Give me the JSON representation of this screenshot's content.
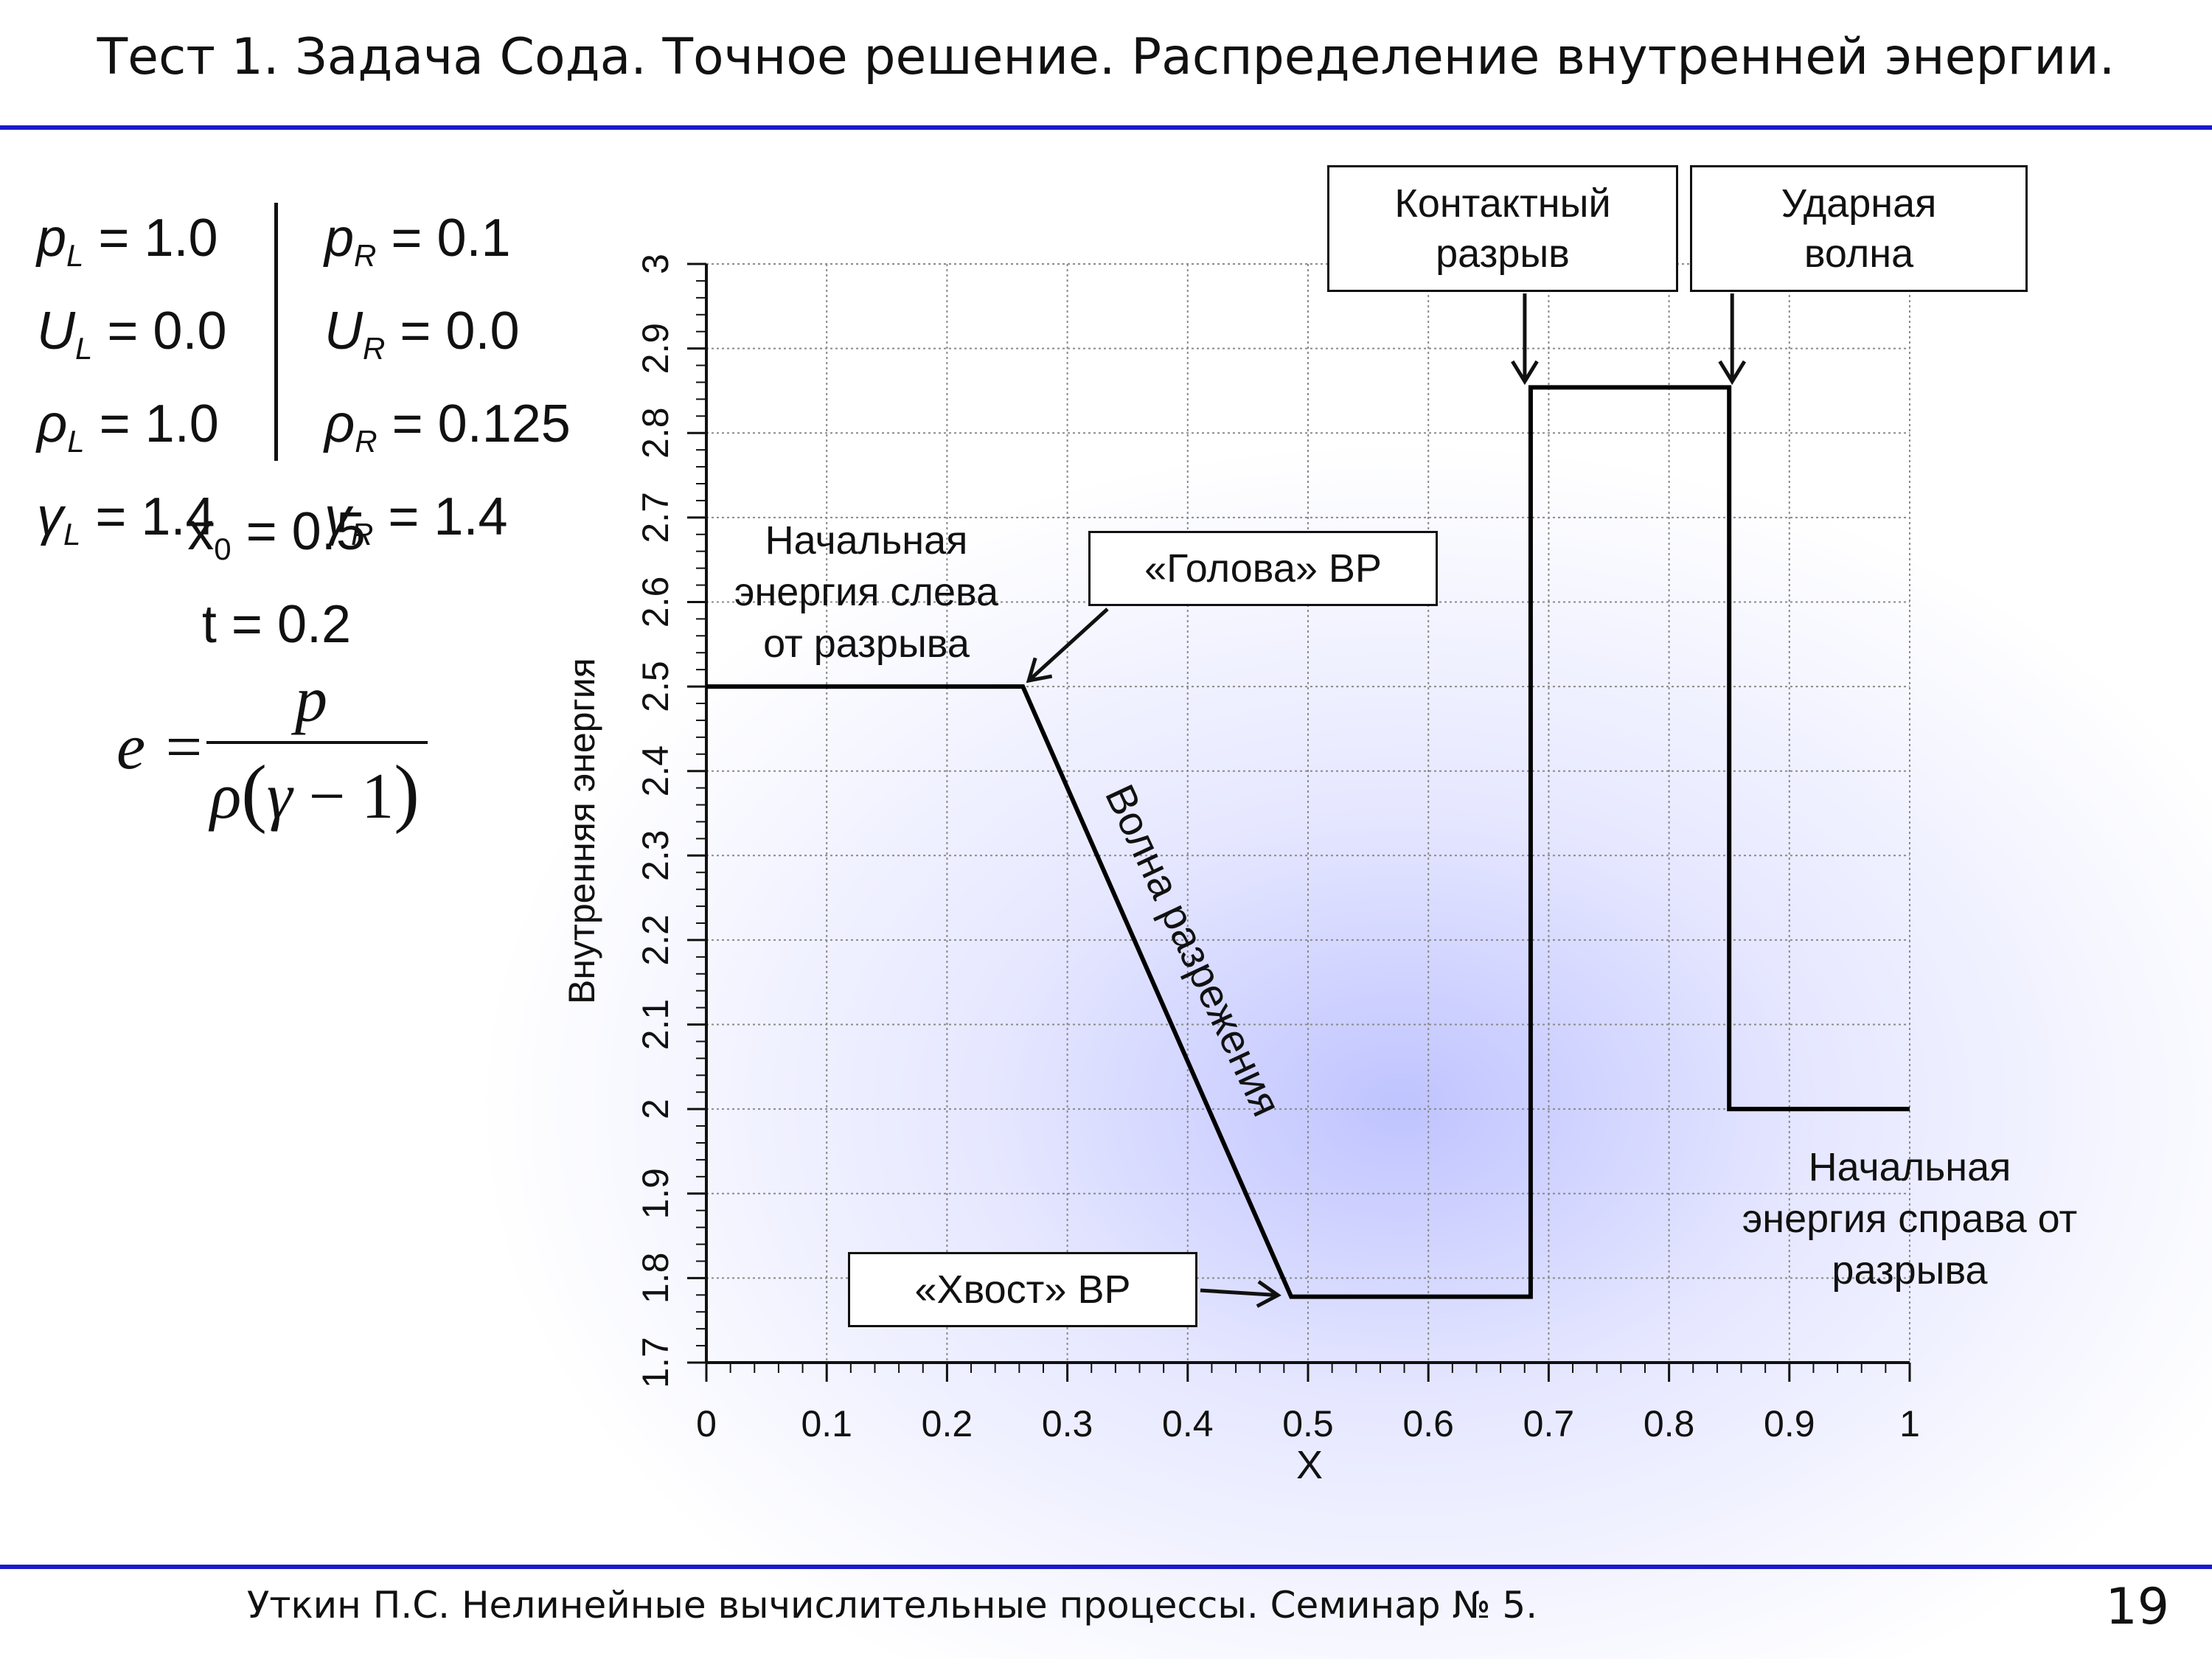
{
  "slide": {
    "title": "Тест 1. Задача Сода. Точное решение. Распределение внутренней энергии.",
    "footer": "Уткин П.С. Нелинейные вычислительные процессы. Семинар № 5.",
    "page_number": "19",
    "accent_color": "#1a1acc"
  },
  "params": {
    "rows": [
      {
        "left_sym": "p",
        "left_sub": "L",
        "left_val": " = 1.0",
        "right_sym": "p",
        "right_sub": "R",
        "right_val": " = 0.1"
      },
      {
        "left_sym": "U",
        "left_sub": "L",
        "left_val": " = 0.0",
        "right_sym": "U",
        "right_sub": "R",
        "right_val": " = 0.0"
      },
      {
        "left_sym": "ρ",
        "left_sub": "L",
        "left_val": " = 1.0",
        "right_sym": "ρ",
        "right_sub": "R",
        "right_val": " = 0.125"
      },
      {
        "left_sym": "γ",
        "left_sub": "L",
        "left_val": " = 1.4",
        "right_sym": "γ",
        "right_sub": "R",
        "right_val": " = 1.4"
      }
    ],
    "x0_sym": "x",
    "x0_sub": "0",
    "x0_val": " = 0.5",
    "t_line": "t = 0.2"
  },
  "formula": {
    "lhs": "e =",
    "numerator": "p",
    "den_rho": "ρ",
    "den_open": "(",
    "den_gamma": "γ",
    "den_minus_one": " − 1",
    "den_close": ")"
  },
  "chart_data": {
    "type": "line",
    "xlabel": "X",
    "ylabel": "Внутренняя энергия",
    "xlim": [
      0,
      1
    ],
    "ylim": [
      1.7,
      3.0
    ],
    "x_ticks": [
      "0",
      "0.1",
      "0.2",
      "0.3",
      "0.4",
      "0.5",
      "0.6",
      "0.7",
      "0.8",
      "0.9",
      "1"
    ],
    "y_ticks": [
      "1.7",
      "1.8",
      "1.9",
      "2",
      "2.1",
      "2.2",
      "2.3",
      "2.4",
      "2.5",
      "2.6",
      "2.7",
      "2.8",
      "2.9",
      "3"
    ],
    "grid": true,
    "series": [
      {
        "x": [
          0.0,
          0.263,
          0.486,
          0.685,
          0.685,
          0.85,
          0.85,
          1.0
        ],
        "y": [
          2.5,
          2.5,
          1.778,
          1.778,
          2.854,
          2.854,
          2.0,
          2.0
        ]
      }
    ],
    "annotations": {
      "contact": {
        "text": "Контактный\nразрыв",
        "x": 0.685,
        "y": 2.854
      },
      "shock": {
        "text": "Ударная\nволна",
        "x": 0.85,
        "y": 2.854
      },
      "head": {
        "text": "«Голова» ВР",
        "x": 0.263,
        "y": 2.5
      },
      "tail": {
        "text": "«Хвост» ВР",
        "x": 0.486,
        "y": 1.778
      },
      "left_energy": "Начальная\nэнергия слева\nот разрыва",
      "right_energy": "Начальная\nэнергия справа от\nразрыва",
      "rarefaction": "Волна разрежения"
    }
  }
}
